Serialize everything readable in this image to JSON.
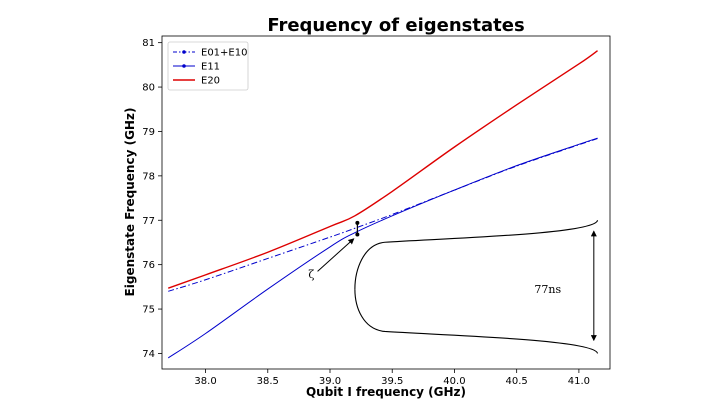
{
  "chart_data": {
    "type": "line",
    "title": "Frequency of eigenstates",
    "xlabel": "Qubit I frequency (GHz)",
    "ylabel": "Eigenstate Frequency (GHz)",
    "xlim": [
      37.65,
      41.25
    ],
    "ylim": [
      73.65,
      81.15
    ],
    "xticks": [
      38.0,
      38.5,
      39.0,
      39.5,
      40.0,
      40.5,
      41.0
    ],
    "xtick_labels": [
      "38.0",
      "38.5",
      "39.0",
      "39.5",
      "40.0",
      "40.5",
      "41.0"
    ],
    "yticks": [
      74,
      75,
      76,
      77,
      78,
      79,
      80,
      81
    ],
    "ytick_labels": [
      "74",
      "75",
      "76",
      "77",
      "78",
      "79",
      "80",
      "81"
    ],
    "grid": false,
    "legend_position": "top-left",
    "series": [
      {
        "name": "E01+E10",
        "color": "#0000cc",
        "style": "dashdot-marker",
        "x": [
          37.7,
          38.0,
          38.5,
          39.0,
          39.2,
          39.5,
          40.0,
          40.5,
          41.0,
          41.15
        ],
        "y": [
          75.4,
          75.66,
          76.14,
          76.62,
          76.82,
          77.13,
          77.68,
          78.22,
          78.7,
          78.84
        ]
      },
      {
        "name": "E11",
        "color": "#0000cc",
        "style": "solid",
        "x": [
          37.7,
          38.0,
          38.5,
          39.0,
          39.2,
          39.5,
          40.0,
          40.5,
          41.0,
          41.15
        ],
        "y": [
          73.9,
          74.45,
          75.45,
          76.4,
          76.72,
          77.1,
          77.68,
          78.23,
          78.71,
          78.85
        ]
      },
      {
        "name": "E20",
        "color": "#dd0000",
        "style": "solid",
        "x": [
          37.7,
          38.0,
          38.5,
          39.0,
          39.2,
          39.5,
          40.0,
          40.5,
          41.0,
          41.15
        ],
        "y": [
          75.47,
          75.77,
          76.28,
          76.86,
          77.1,
          77.65,
          78.65,
          79.6,
          80.52,
          80.82
        ]
      }
    ],
    "pulse": {
      "x_start": 39.2,
      "x_end": 41.15,
      "y_center": 75.45,
      "y_top": 77.0,
      "y_bottom": 74.0,
      "duration_label": "77ns",
      "duration_arrow_x": 41.12,
      "duration_arrow_y": [
        76.75,
        74.3
      ],
      "duration_label_x": 40.75,
      "duration_label_y": 75.45
    },
    "zeta": {
      "label": "ζ",
      "arrow_from": [
        38.9,
        75.85
      ],
      "arrow_to": [
        39.19,
        76.58
      ],
      "label_x": 38.85,
      "label_y": 75.7,
      "gap_x": 39.22,
      "gap_y": [
        76.68,
        76.94
      ]
    }
  }
}
